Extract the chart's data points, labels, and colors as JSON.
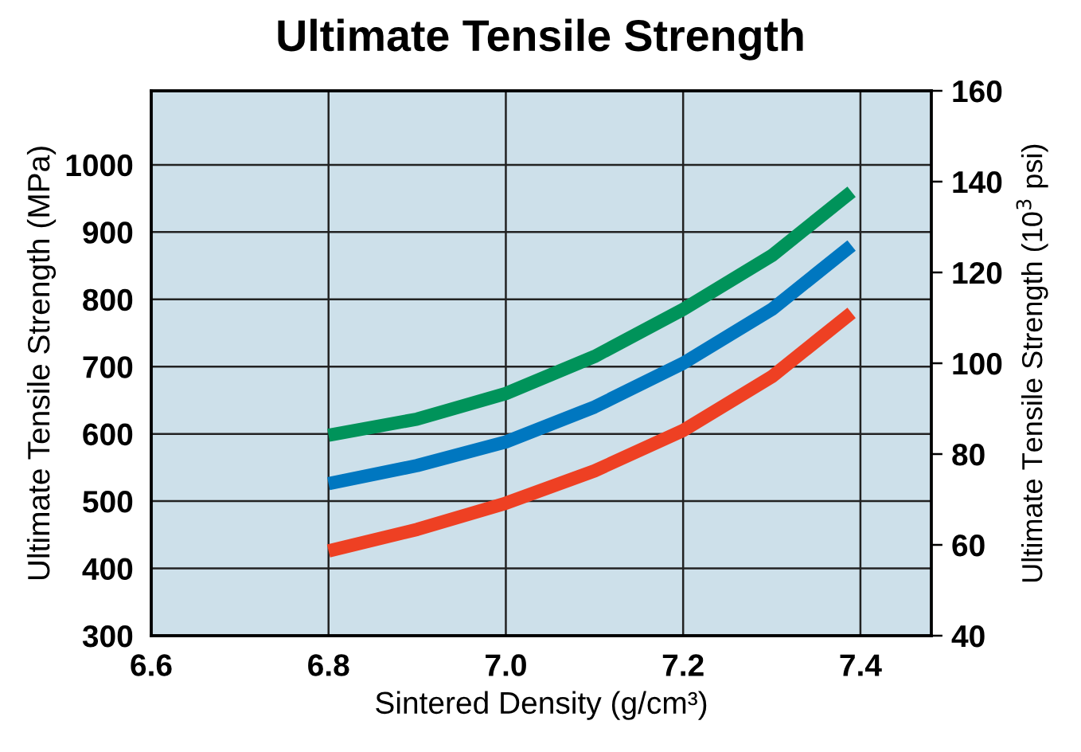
{
  "chart_data": {
    "type": "line",
    "title": "Ultimate Tensile Strength",
    "xlabel": "Sintered Density (g/cm³)",
    "ylabel": "Ultimate Tensile Strength (MPa)",
    "y2label": "Ultimate Tensile Strength (10$^{3}$ psi)",
    "x": [
      6.8,
      6.9,
      7.0,
      7.1,
      7.2,
      7.3,
      7.39
    ],
    "series": [
      {
        "color": "#00935a",
        "values": [
          598,
          622,
          660,
          715,
          785,
          865,
          960
        ]
      },
      {
        "color": "#0077c0",
        "values": [
          526,
          553,
          588,
          640,
          705,
          785,
          880
        ]
      },
      {
        "color": "#ee4023",
        "values": [
          426,
          458,
          497,
          545,
          605,
          685,
          780
        ]
      }
    ],
    "xlim": [
      6.6,
      7.48
    ],
    "xticks": [
      {
        "value": 6.6,
        "label": "6.6"
      },
      {
        "value": 6.8,
        "label": "6.8"
      },
      {
        "value": 7,
        "label": "7.0"
      },
      {
        "value": 7.2,
        "label": "7.2"
      },
      {
        "value": 7.4,
        "label": "7.4"
      }
    ],
    "ylim": [
      300,
      1110
    ],
    "yticks": [
      300,
      400,
      500,
      600,
      700,
      800,
      900,
      1000
    ],
    "y2lim": [
      40,
      160
    ],
    "y2ticks": [
      40,
      60,
      80,
      100,
      120,
      140,
      160
    ],
    "grid": true,
    "legend": false,
    "marker": "none",
    "line_style": "solid"
  }
}
